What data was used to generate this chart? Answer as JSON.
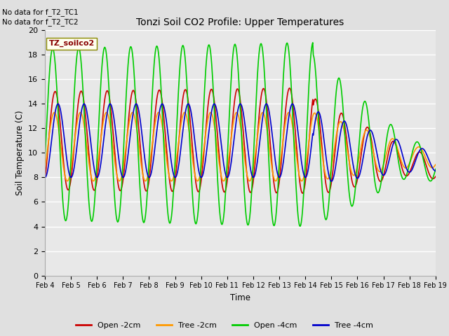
{
  "title": "Tonzi Soil CO2 Profile: Upper Temperatures",
  "ylabel": "Soil Temperature (C)",
  "xlabel": "Time",
  "no_data_text": [
    "No data for f_T2_TC1",
    "No data for f_T2_TC2"
  ],
  "legend_label": "TZ_soilco2",
  "series_labels": [
    "Open -2cm",
    "Tree -2cm",
    "Open -4cm",
    "Tree -4cm"
  ],
  "series_colors": [
    "#cc0000",
    "#ff9900",
    "#00cc00",
    "#0000cc"
  ],
  "ylim": [
    0,
    20
  ],
  "figsize": [
    6.4,
    4.8
  ],
  "dpi": 100,
  "x_tick_labels": [
    "Feb 4",
    "Feb 5",
    "Feb 6",
    "Feb 7",
    "Feb 8",
    "Feb 9",
    "Feb 10",
    "Feb 11",
    "Feb 12",
    "Feb 13",
    "Feb 14",
    "Feb 15",
    "Feb 16",
    "Feb 17",
    "Feb 18",
    "Feb 19"
  ],
  "y_ticks": [
    0,
    2,
    4,
    6,
    8,
    10,
    12,
    14,
    16,
    18,
    20
  ]
}
